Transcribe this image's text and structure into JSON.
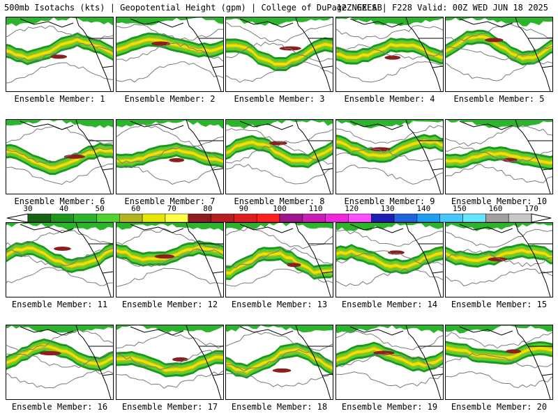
{
  "header": {
    "left": "500mb Isotachs (kts) | Geopotential Height (gpm) | College of DuPage NEXLAB",
    "right": "12Z GEFS | F228 Valid: 00Z WED JUN 18 2025"
  },
  "panels": [
    {
      "caption": "Ensemble Member: 1"
    },
    {
      "caption": "Ensemble Member: 2"
    },
    {
      "caption": "Ensemble Member: 3"
    },
    {
      "caption": "Ensemble Member: 4"
    },
    {
      "caption": "Ensemble Member: 5"
    },
    {
      "caption": "Ensemble Member: 6"
    },
    {
      "caption": "Ensemble Member: 7"
    },
    {
      "caption": "Ensemble Member: 8"
    },
    {
      "caption": "Ensemble Member: 9"
    },
    {
      "caption": "Ensemble Member: 10"
    },
    {
      "caption": "Ensemble Member: 11"
    },
    {
      "caption": "Ensemble Member: 12"
    },
    {
      "caption": "Ensemble Member: 13"
    },
    {
      "caption": "Ensemble Member: 14"
    },
    {
      "caption": "Ensemble Member: 15"
    },
    {
      "caption": "Ensemble Member: 16"
    },
    {
      "caption": "Ensemble Member: 17"
    },
    {
      "caption": "Ensemble Member: 18"
    },
    {
      "caption": "Ensemble Member: 19"
    },
    {
      "caption": "Ensemble Member: 20"
    }
  ],
  "colorbar": {
    "labels": [
      "30",
      "40",
      "50",
      "60",
      "70",
      "80",
      "90",
      "100",
      "110",
      "120",
      "130",
      "140",
      "150",
      "160",
      "170"
    ],
    "colors": [
      "#146414",
      "#1e961e",
      "#2db42d",
      "#50d232",
      "#b4b41e",
      "#e6e600",
      "#ffff46",
      "#8c1e1e",
      "#b41e1e",
      "#dc1e1e",
      "#ff1e1e",
      "#a0148c",
      "#c81eb4",
      "#f028dc",
      "#ff50ff",
      "#1e1eb4",
      "#1e64dc",
      "#1e9ef0",
      "#46c8ff",
      "#64e6ff",
      "#a0a0a0",
      "#c8c8c8"
    ]
  }
}
